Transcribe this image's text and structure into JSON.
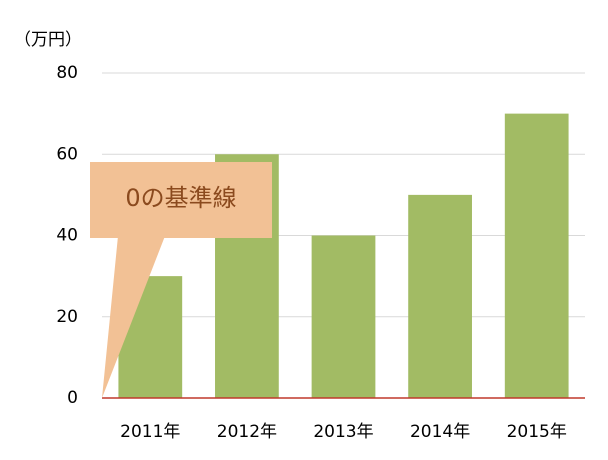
{
  "chart_data": {
    "type": "bar",
    "y_unit_label": "（万円）",
    "categories": [
      "2011年",
      "2012年",
      "2013年",
      "2014年",
      "2015年"
    ],
    "values": [
      30,
      60,
      40,
      50,
      70
    ],
    "color": "#a2bb64",
    "ylim": [
      0,
      80
    ],
    "yticks": [
      0,
      20,
      40,
      60,
      80
    ],
    "grid": true,
    "grid_color": "#d9d9d9",
    "baseline_color": "#c0392b",
    "annotation": {
      "text": "0の基準線",
      "color": "#f2c195",
      "text_color": "#8b4a1e"
    }
  }
}
